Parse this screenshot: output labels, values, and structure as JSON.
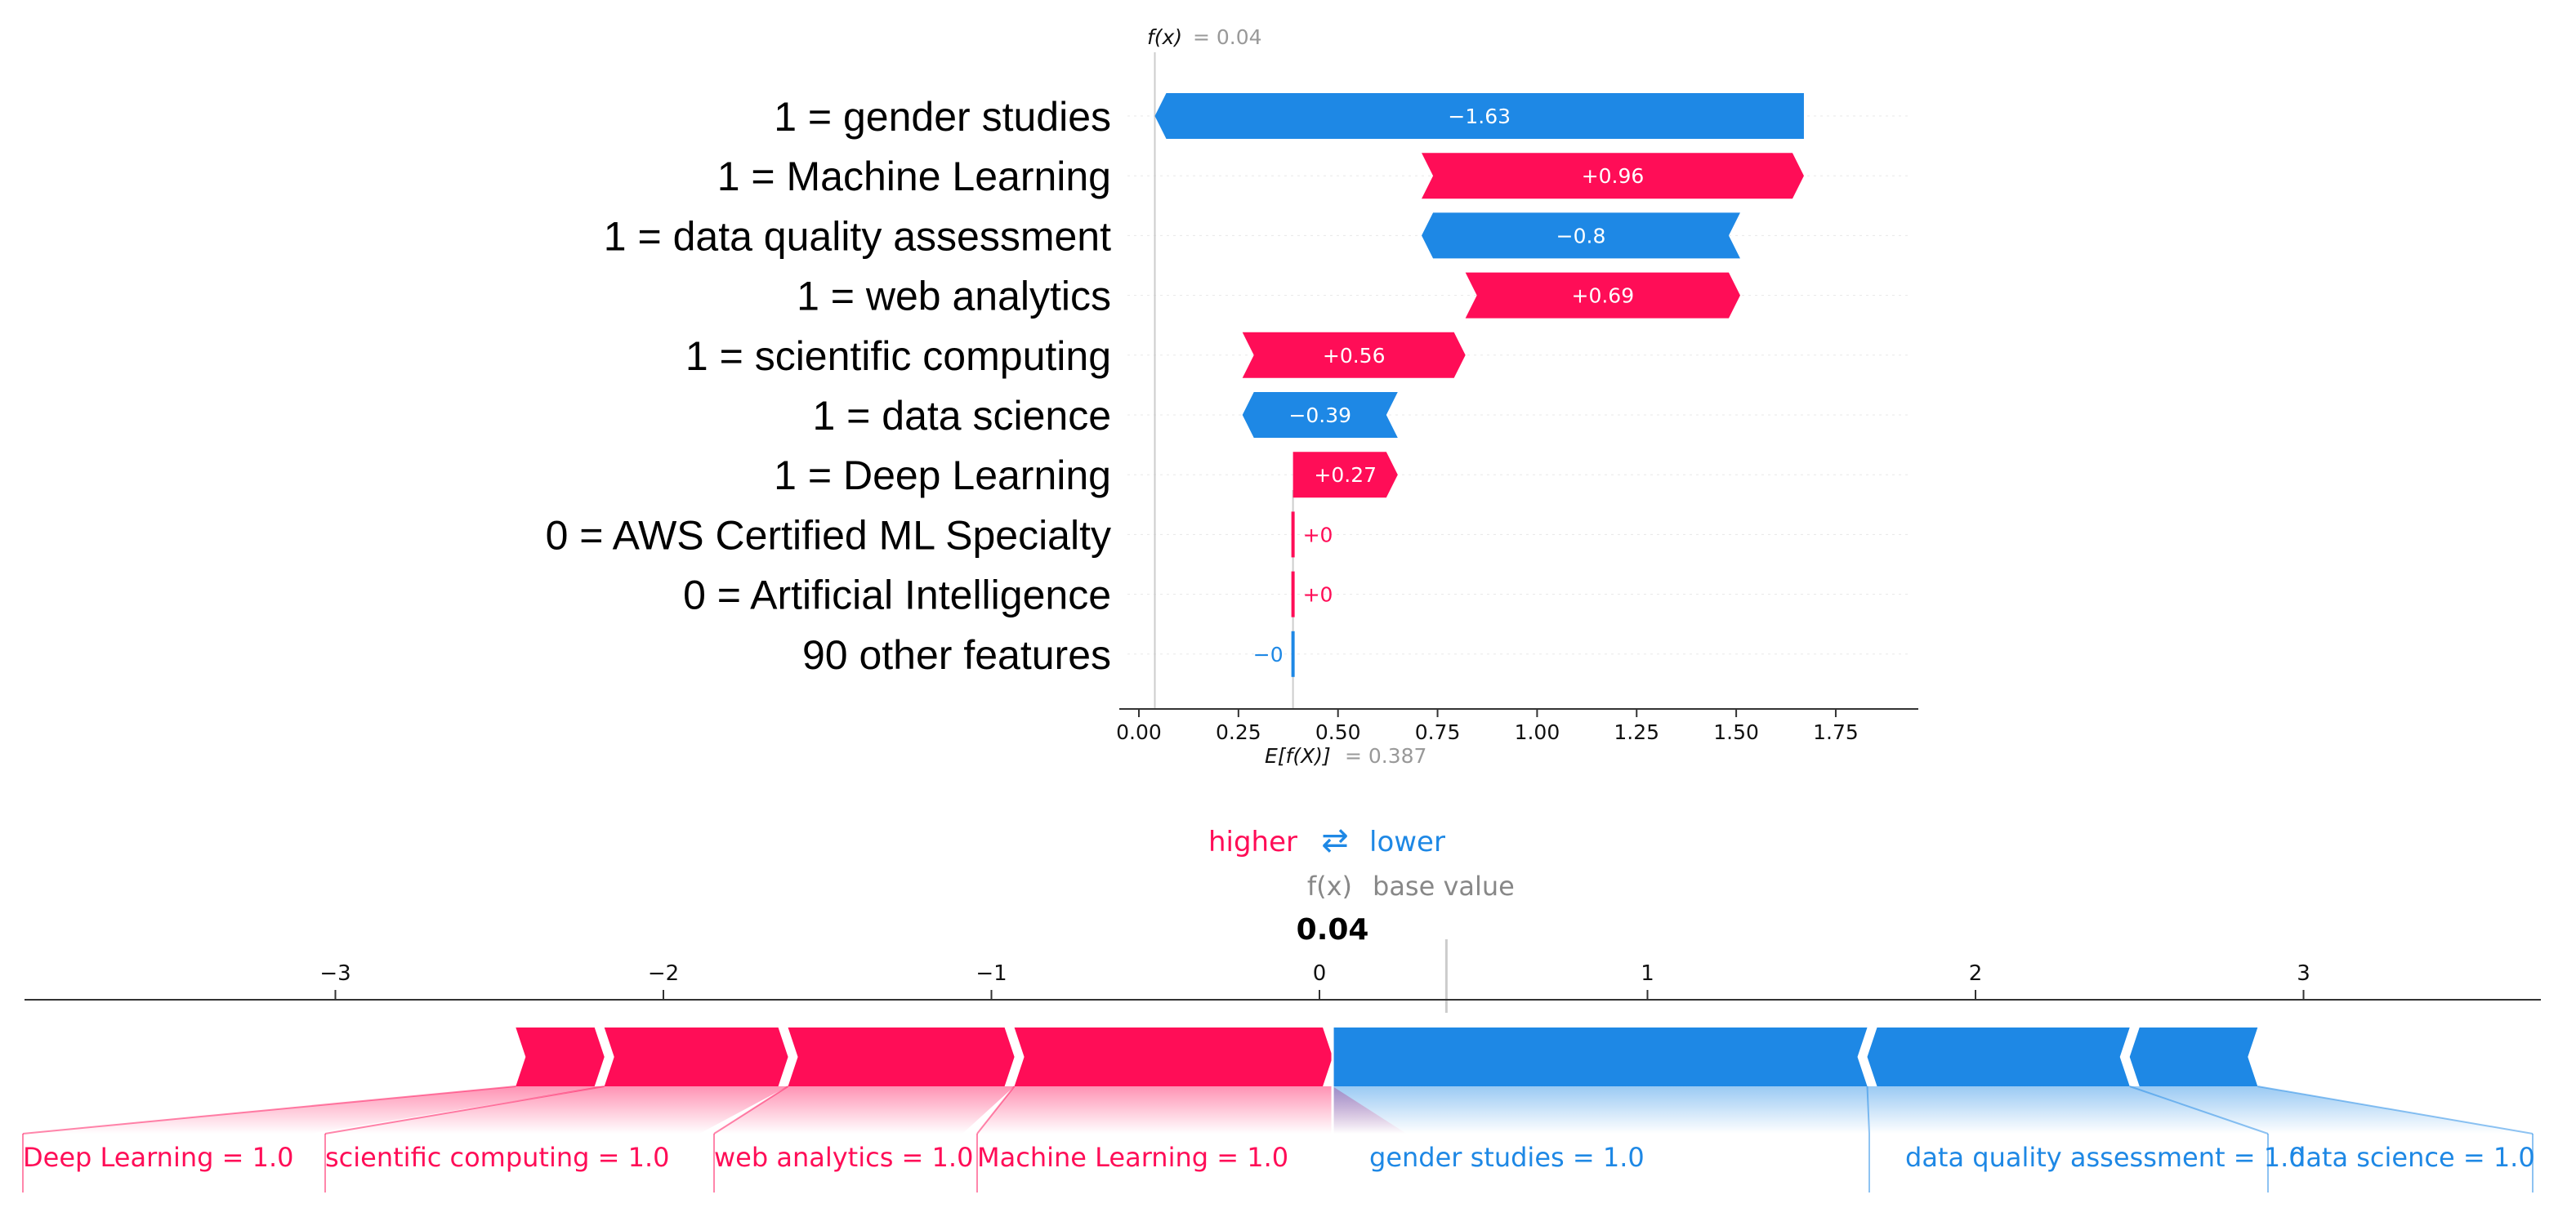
{
  "chart_data": [
    {
      "type": "waterfall",
      "title": "",
      "fx_label": "f(x)",
      "fx_value_text": "= 0.04",
      "base_label": "E[f(X)]",
      "base_value_text": "= 0.387",
      "base_value": 0.387,
      "fx_value": 0.04,
      "xlim": [
        -0.05,
        1.93
      ],
      "ticks": [
        0.0,
        0.25,
        0.5,
        0.75,
        1.0,
        1.25,
        1.5,
        1.75
      ],
      "tick_labels": [
        "0.00",
        "0.25",
        "0.50",
        "0.75",
        "1.00",
        "1.25",
        "1.50",
        "1.75"
      ],
      "features": [
        {
          "label": "1 = gender studies",
          "value": -1.63,
          "text": "−1.63",
          "start": 1.67,
          "end": 0.04
        },
        {
          "label": "1 = Machine Learning",
          "value": 0.96,
          "text": "+0.96",
          "start": 0.71,
          "end": 1.67
        },
        {
          "label": "1 = data quality assessment",
          "value": -0.8,
          "text": "−0.8",
          "start": 1.51,
          "end": 0.71
        },
        {
          "label": "1 = web analytics",
          "value": 0.69,
          "text": "+0.69",
          "start": 0.82,
          "end": 1.51
        },
        {
          "label": "1 = scientific computing",
          "value": 0.56,
          "text": "+0.56",
          "start": 0.26,
          "end": 0.82
        },
        {
          "label": "1 = data science",
          "value": -0.39,
          "text": "−0.39",
          "start": 0.65,
          "end": 0.26
        },
        {
          "label": "1 = Deep Learning",
          "value": 0.27,
          "text": "+0.27",
          "start": 0.387,
          "end": 0.65
        },
        {
          "label": "0 = AWS Certified ML Specialty",
          "value": 0.0,
          "text": "+0",
          "start": 0.387,
          "end": 0.387
        },
        {
          "label": "0 = Artificial Intelligence",
          "value": 0.0,
          "text": "+0",
          "start": 0.387,
          "end": 0.387
        },
        {
          "label": "90 other features",
          "value": -0.0,
          "text": "−0",
          "start": 0.387,
          "end": 0.387
        }
      ]
    },
    {
      "type": "force",
      "higher_label": "higher",
      "swap_symbol": "⇄",
      "lower_label": "lower",
      "fx_label": "f(x)",
      "base_label": "base value",
      "output_value": 0.04,
      "output_text": "0.04",
      "base_value": 0.387,
      "xlim": [
        -4.0,
        3.7
      ],
      "ticks": [
        -3,
        -2,
        -1,
        0,
        1,
        2,
        3
      ],
      "tick_labels": [
        "−3",
        "−2",
        "−1",
        "0",
        "1",
        "2",
        "3"
      ],
      "positive": [
        {
          "label": "Deep Learning = 1.0",
          "start": -2.45,
          "end": -2.18
        },
        {
          "label": "scientific computing = 1.0",
          "start": -2.18,
          "end": -1.62
        },
        {
          "label": "web analytics = 1.0",
          "start": -1.62,
          "end": -0.93
        },
        {
          "label": "Machine Learning = 1.0",
          "start": -0.93,
          "end": 0.04
        }
      ],
      "negative": [
        {
          "label": "gender studies = 1.0",
          "start": 0.04,
          "end": 1.67
        },
        {
          "label": "data quality assessment = 1.0",
          "start": 1.67,
          "end": 2.47
        },
        {
          "label": "data science = 1.0",
          "start": 2.47,
          "end": 2.86
        }
      ]
    }
  ],
  "colors": {
    "positive": "#ff0d57",
    "negative": "#1e88e5",
    "axis": "#333333",
    "muted": "#888888",
    "grid": "#cccccc"
  }
}
